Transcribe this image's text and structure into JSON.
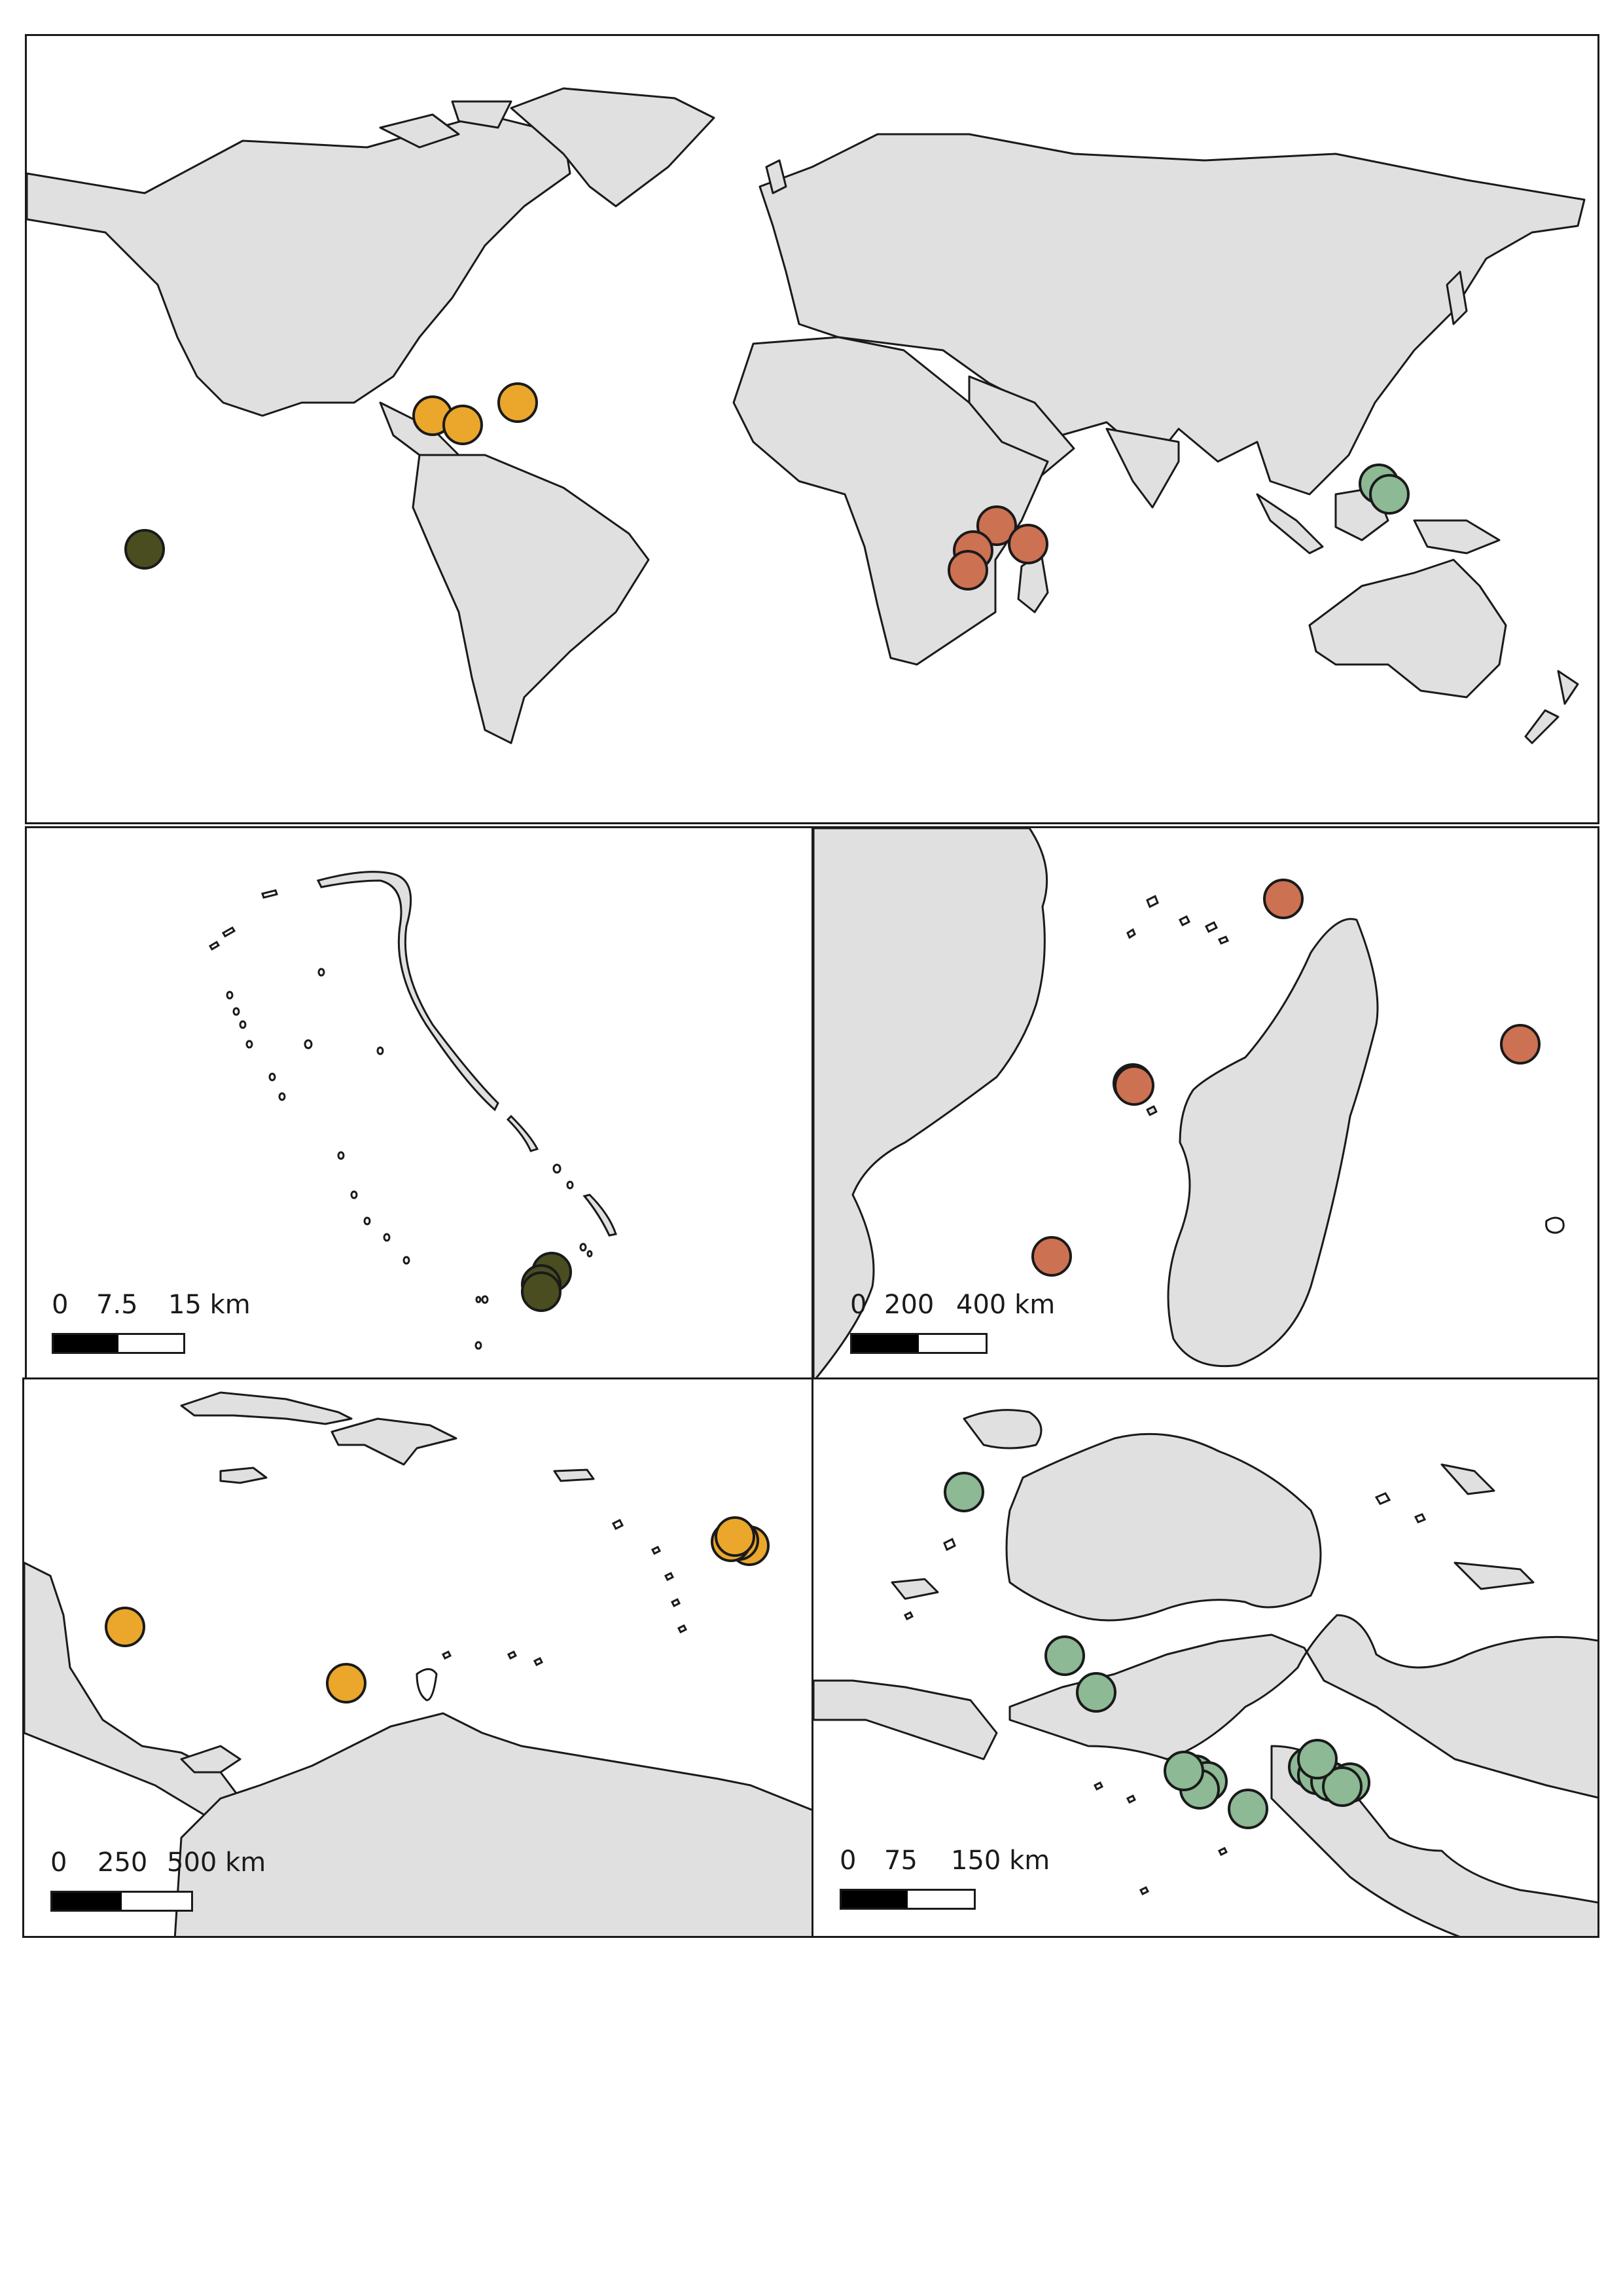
{
  "colors": {
    "land": "#e0e0e0",
    "coast": "#1a1a1a",
    "pacific": "#4a4d1f",
    "indian": "#cc7152",
    "caribbean": "#eaa72c",
    "indonesia": "#8db995"
  },
  "panels": {
    "world": {},
    "pacific": {
      "scale": [
        "0",
        "7.5",
        "15 km"
      ]
    },
    "indian": {
      "scale": [
        "0",
        "200",
        "400 km"
      ]
    },
    "caribbean": {
      "scale": [
        "0",
        "250",
        "500 km"
      ]
    },
    "indonesia": {
      "scale": [
        "0",
        "75",
        "150 km"
      ]
    }
  }
}
